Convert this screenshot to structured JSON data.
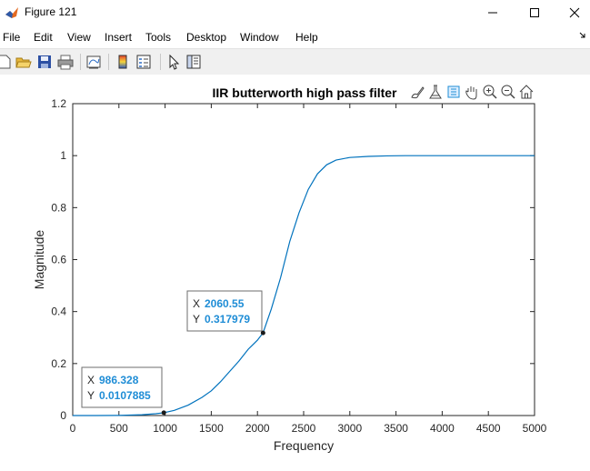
{
  "window": {
    "title": "Figure 121"
  },
  "menu": [
    "File",
    "Edit",
    "View",
    "Insert",
    "Tools",
    "Desktop",
    "Window",
    "Help"
  ],
  "toolbar": [
    "new-figure-icon",
    "open-file-icon",
    "save-icon",
    "print-icon",
    "link-plot-icon",
    "insert-colorbar-icon",
    "insert-legend-icon",
    "edit-plot-icon",
    "property-inspector-icon"
  ],
  "axes_toolbar": [
    "brush-icon",
    "data-tips-icon",
    "export-icon",
    "pan-icon",
    "zoom-in-icon",
    "zoom-out-icon",
    "home-icon"
  ],
  "colors": {
    "line": "#0072bd",
    "datatip_value": "#1f8dd6",
    "title": "#000000"
  },
  "chart_data": {
    "type": "line",
    "title": "IIR butterworth high pass filter",
    "xlabel": "Frequency",
    "ylabel": "Magnitude",
    "xlim": [
      0,
      5000
    ],
    "ylim": [
      0,
      1.2
    ],
    "xticks": [
      "0",
      "500",
      "1000",
      "1500",
      "2000",
      "2500",
      "3000",
      "3500",
      "4000",
      "4500",
      "5000"
    ],
    "yticks": [
      "0",
      "0.2",
      "0.4",
      "0.6",
      "0.8",
      "1",
      "1.2"
    ],
    "grid": false,
    "series": [
      {
        "x": [
          0,
          250,
          500,
          750,
          900,
          986.328,
          1100,
          1250,
          1400,
          1500,
          1600,
          1700,
          1800,
          1900,
          2000,
          2060.55,
          2150,
          2250,
          2350,
          2450,
          2550,
          2650,
          2750,
          2850,
          3000,
          3200,
          3400,
          3600,
          3800,
          4000,
          4500,
          5000
        ],
        "y": [
          0,
          0,
          0.0005,
          0.003,
          0.007,
          0.0107885,
          0.02,
          0.04,
          0.07,
          0.095,
          0.13,
          0.17,
          0.21,
          0.255,
          0.29,
          0.317979,
          0.41,
          0.53,
          0.67,
          0.78,
          0.87,
          0.93,
          0.965,
          0.983,
          0.993,
          0.997,
          0.999,
          1,
          1,
          1,
          1,
          1
        ]
      }
    ],
    "datatips": [
      {
        "x_label": "X",
        "x_value": "986.328",
        "y_label": "Y",
        "y_value": "0.0107885",
        "x": 986.328,
        "y": 0.0107885
      },
      {
        "x_label": "X",
        "x_value": "2060.55",
        "y_label": "Y",
        "y_value": "0.317979",
        "x": 2060.55,
        "y": 0.317979
      }
    ]
  }
}
